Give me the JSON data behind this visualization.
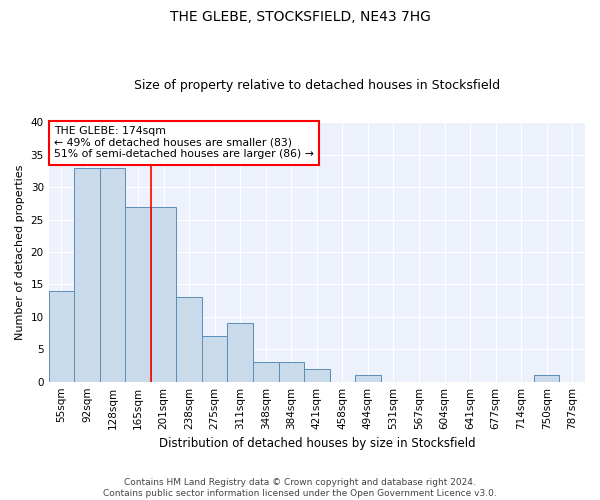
{
  "title": "THE GLEBE, STOCKSFIELD, NE43 7HG",
  "subtitle": "Size of property relative to detached houses in Stocksfield",
  "xlabel": "Distribution of detached houses by size in Stocksfield",
  "ylabel": "Number of detached properties",
  "footer_line1": "Contains HM Land Registry data © Crown copyright and database right 2024.",
  "footer_line2": "Contains public sector information licensed under the Open Government Licence v3.0.",
  "categories": [
    "55sqm",
    "92sqm",
    "128sqm",
    "165sqm",
    "201sqm",
    "238sqm",
    "275sqm",
    "311sqm",
    "348sqm",
    "384sqm",
    "421sqm",
    "458sqm",
    "494sqm",
    "531sqm",
    "567sqm",
    "604sqm",
    "641sqm",
    "677sqm",
    "714sqm",
    "750sqm",
    "787sqm"
  ],
  "values": [
    14,
    33,
    33,
    27,
    27,
    13,
    7,
    9,
    3,
    3,
    2,
    0,
    1,
    0,
    0,
    0,
    0,
    0,
    0,
    1,
    0
  ],
  "bar_color": "#c9daea",
  "bar_edge_color": "#5b8db8",
  "ylim": [
    0,
    40
  ],
  "yticks": [
    0,
    5,
    10,
    15,
    20,
    25,
    30,
    35,
    40
  ],
  "annotation_text_line1": "THE GLEBE: 174sqm",
  "annotation_text_line2": "← 49% of detached houses are smaller (83)",
  "annotation_text_line3": "51% of semi-detached houses are larger (86) →",
  "annotation_box_color": "white",
  "annotation_box_edge_color": "red",
  "vline_color": "red",
  "vline_x": 3.5,
  "background_color": "#edf1fb",
  "grid_color": "white",
  "fig_bg_color": "white",
  "title_fontsize": 10,
  "subtitle_fontsize": 9,
  "ylabel_fontsize": 8,
  "xlabel_fontsize": 8.5,
  "tick_fontsize": 7.5,
  "annotation_fontsize": 7.8,
  "footer_fontsize": 6.5
}
